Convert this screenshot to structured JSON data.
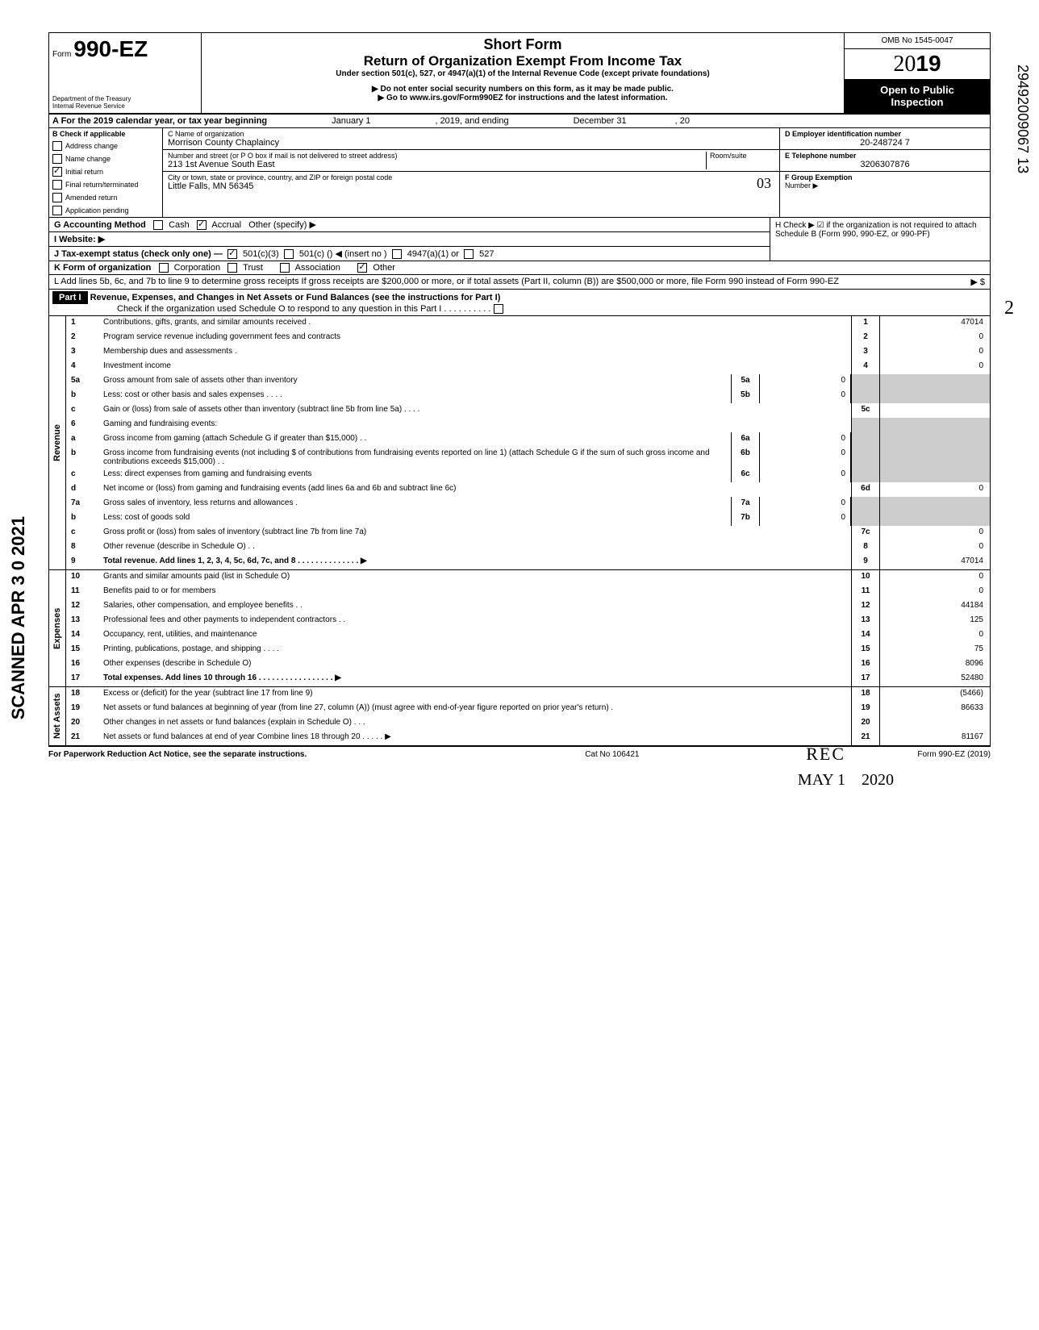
{
  "header": {
    "form_prefix": "Form",
    "form_number": "990-EZ",
    "short_form": "Short Form",
    "title": "Return of Organization Exempt From Income Tax",
    "subtitle": "Under section 501(c), 527, or 4947(a)(1) of the Internal Revenue Code (except private foundations)",
    "warn1": "▶ Do not enter social security numbers on this form, as it may be made public.",
    "warn2": "▶ Go to www.irs.gov/Form990EZ for instructions and the latest information.",
    "dept1": "Department of the Treasury",
    "dept2": "Internal Revenue Service",
    "omb": "OMB No 1545-0047",
    "year": "2019",
    "open1": "Open to Public",
    "open2": "Inspection"
  },
  "section_a": {
    "line_a": "A For the 2019 calendar year, or tax year beginning",
    "begin": "January 1",
    "mid": ", 2019, and ending",
    "end": "December 31",
    "endyr": ", 20"
  },
  "section_b": {
    "header": "B Check if applicable",
    "items": [
      "Address change",
      "Name change",
      "Initial return",
      "Final return/terminated",
      "Amended return",
      "Application pending"
    ],
    "checked_index": 2
  },
  "section_c": {
    "name_label": "C Name of organization",
    "name": "Morrison County Chaplaincy",
    "addr_label": "Number and street (or P O box if mail is not delivered to street address)",
    "room_label": "Room/suite",
    "addr": "213 1st Avenue South East",
    "city_label": "City or town, state or province, country, and ZIP or foreign postal code",
    "city": "Little Falls, MN 56345",
    "city_hand": "03"
  },
  "section_d": {
    "label": "D Employer identification number",
    "value": "20-248724 7"
  },
  "section_e": {
    "label": "E Telephone number",
    "value": "3206307876"
  },
  "section_f": {
    "label": "F Group Exemption",
    "label2": "Number ▶"
  },
  "section_g": {
    "label": "G Accounting Method",
    "cash": "Cash",
    "accrual": "Accrual",
    "other": "Other (specify) ▶"
  },
  "section_h": {
    "text": "H Check ▶ ☑ if the organization is not required to attach Schedule B (Form 990, 990-EZ, or 990-PF)"
  },
  "section_i": {
    "label": "I  Website: ▶"
  },
  "section_j": {
    "label": "J Tax-exempt status (check only one) —",
    "opt1": "501(c)(3)",
    "opt2": "501(c) (",
    "opt2b": ") ◀ (insert no )",
    "opt3": "4947(a)(1) or",
    "opt4": "527"
  },
  "section_k": {
    "label": "K Form of organization",
    "opts": [
      "Corporation",
      "Trust",
      "Association",
      "Other"
    ]
  },
  "section_l": {
    "text": "L Add lines 5b, 6c, and 7b to line 9 to determine gross receipts  If gross receipts are $200,000 or more, or if total assets (Part II, column (B)) are $500,000 or more, file Form 990 instead of Form 990-EZ",
    "arrow": "▶  $"
  },
  "part1": {
    "label": "Part I",
    "title": "Revenue, Expenses, and Changes in Net Assets or Fund Balances (see the instructions for Part I)",
    "check_text": "Check if the organization used Schedule O to respond to any question in this Part I . . . . . . . . . ."
  },
  "vert": {
    "revenue": "Revenue",
    "expenses": "Expenses",
    "netassets": "Net Assets"
  },
  "lines": {
    "l1": {
      "num": "1",
      "text": "Contributions, gifts, grants, and similar amounts received .",
      "rnum": "1",
      "rval": "47014"
    },
    "l2": {
      "num": "2",
      "text": "Program service revenue including government fees and contracts",
      "rnum": "2",
      "rval": "0"
    },
    "l3": {
      "num": "3",
      "text": "Membership dues and assessments .",
      "rnum": "3",
      "rval": "0"
    },
    "l4": {
      "num": "4",
      "text": "Investment income",
      "rnum": "4",
      "rval": "0"
    },
    "l5a": {
      "num": "5a",
      "text": "Gross amount from sale of assets other than inventory",
      "mnum": "5a",
      "mval": "0"
    },
    "l5b": {
      "num": "b",
      "text": "Less: cost or other basis and sales expenses . . . .",
      "mnum": "5b",
      "mval": "0"
    },
    "l5c": {
      "num": "c",
      "text": "Gain or (loss) from sale of assets other than inventory (subtract line 5b from line 5a) . . . .",
      "rnum": "5c",
      "rval": ""
    },
    "l6": {
      "num": "6",
      "text": "Gaming and fundraising events:"
    },
    "l6a": {
      "num": "a",
      "text": "Gross income from gaming (attach Schedule G if greater than $15,000) . .",
      "mnum": "6a",
      "mval": "0"
    },
    "l6b": {
      "num": "b",
      "text": "Gross income from fundraising events (not including  $                      of contributions from fundraising events reported on line 1) (attach Schedule G if the sum of such gross income and contributions exceeds $15,000) . .",
      "mnum": "6b",
      "mval": "0"
    },
    "l6c": {
      "num": "c",
      "text": "Less: direct expenses from gaming and fundraising events",
      "mnum": "6c",
      "mval": "0"
    },
    "l6d": {
      "num": "d",
      "text": "Net income or (loss) from gaming and fundraising events (add lines 6a and 6b and subtract line 6c)",
      "rnum": "6d",
      "rval": "0"
    },
    "l7a": {
      "num": "7a",
      "text": "Gross sales of inventory, less returns and allowances .",
      "mnum": "7a",
      "mval": "0"
    },
    "l7b": {
      "num": "b",
      "text": "Less: cost of goods sold",
      "mnum": "7b",
      "mval": "0"
    },
    "l7c": {
      "num": "c",
      "text": "Gross profit or (loss) from sales of inventory (subtract line 7b from line 7a)",
      "rnum": "7c",
      "rval": "0"
    },
    "l8": {
      "num": "8",
      "text": "Other revenue (describe in Schedule O) . .",
      "rnum": "8",
      "rval": "0"
    },
    "l9": {
      "num": "9",
      "text": "Total revenue. Add lines 1, 2, 3, 4, 5c, 6d, 7c, and 8  . . . . . . . . . . . . . . ▶",
      "rnum": "9",
      "rval": "47014",
      "bold": true
    },
    "l10": {
      "num": "10",
      "text": "Grants and similar amounts paid (list in Schedule O)",
      "rnum": "10",
      "rval": "0"
    },
    "l11": {
      "num": "11",
      "text": "Benefits paid to or for members",
      "rnum": "11",
      "rval": "0"
    },
    "l12": {
      "num": "12",
      "text": "Salaries, other compensation, and employee benefits . .",
      "rnum": "12",
      "rval": "44184"
    },
    "l13": {
      "num": "13",
      "text": "Professional fees and other payments to independent contractors . .",
      "rnum": "13",
      "rval": "125"
    },
    "l14": {
      "num": "14",
      "text": "Occupancy, rent, utilities, and maintenance",
      "rnum": "14",
      "rval": "0"
    },
    "l15": {
      "num": "15",
      "text": "Printing, publications, postage, and shipping . . . .",
      "rnum": "15",
      "rval": "75"
    },
    "l16": {
      "num": "16",
      "text": "Other expenses (describe in Schedule O)",
      "rnum": "16",
      "rval": "8096"
    },
    "l17": {
      "num": "17",
      "text": "Total expenses. Add lines 10 through 16    . . . . . . . . . . . . . . . . . ▶",
      "rnum": "17",
      "rval": "52480",
      "bold": true
    },
    "l18": {
      "num": "18",
      "text": "Excess or (deficit) for the year (subtract line 17 from line 9)",
      "rnum": "18",
      "rval": "(5466)"
    },
    "l19": {
      "num": "19",
      "text": "Net assets or fund balances at beginning of year (from line 27, column (A)) (must agree with end-of-year figure reported on prior year's return) .",
      "rnum": "19",
      "rval": "86633"
    },
    "l20": {
      "num": "20",
      "text": "Other changes in net assets or fund balances (explain in Schedule O) . . .",
      "rnum": "20",
      "rval": ""
    },
    "l21": {
      "num": "21",
      "text": "Net assets or fund balances at end of year  Combine lines 18 through 20   . . . . . ▶",
      "rnum": "21",
      "rval": "81167"
    }
  },
  "footer": {
    "left": "For Paperwork Reduction Act Notice, see the separate instructions.",
    "center": "Cat No 106421",
    "right": "Form 990-EZ (2019)"
  },
  "stamps": {
    "rec": "REC",
    "may": "MAY 1",
    "year": "2020",
    "scanned": "SCANNED APR 3 0 2021",
    "sidenum": "29492009067 13",
    "hand2": "2"
  },
  "colors": {
    "black": "#000000",
    "shade": "#cccccc"
  }
}
